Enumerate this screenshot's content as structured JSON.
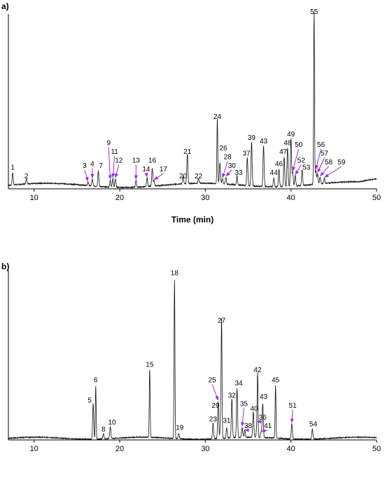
{
  "chart_data": [
    {
      "type": "line",
      "panel": "a)",
      "xlabel": "Time (min)",
      "xlim": [
        7,
        50
      ],
      "xticks": [
        10,
        20,
        30,
        40,
        50
      ],
      "ylabel": "",
      "baseline_level": 0.02,
      "colors": {
        "trace": "#111111",
        "arrow": "#9b2fd8"
      },
      "peaks": [
        {
          "label": "1",
          "x": 7.5,
          "h": 0.07,
          "lx": 7.5,
          "ly": 0.11
        },
        {
          "label": "2",
          "x": 9.1,
          "h": 0.03,
          "lx": 9.1,
          "ly": 0.06
        },
        {
          "label": "3",
          "x": 16.3,
          "h": 0.02,
          "lx": 15.9,
          "ly": 0.12,
          "arrow": true
        },
        {
          "label": "4",
          "x": 16.8,
          "h": 0.04,
          "lx": 16.8,
          "ly": 0.13,
          "arrow": true
        },
        {
          "label": "7",
          "x": 17.5,
          "h": 0.09,
          "lx": 17.8,
          "ly": 0.12
        },
        {
          "label": "9",
          "x": 18.9,
          "h": 0.04,
          "lx": 18.7,
          "ly": 0.25,
          "arrow": true
        },
        {
          "label": "11",
          "x": 19.2,
          "h": 0.05,
          "lx": 19.4,
          "ly": 0.2,
          "arrow": true
        },
        {
          "label": "12",
          "x": 19.5,
          "h": 0.05,
          "lx": 19.9,
          "ly": 0.15,
          "arrow": true
        },
        {
          "label": "13",
          "x": 21.9,
          "h": 0.04,
          "lx": 21.9,
          "ly": 0.15,
          "arrow": true
        },
        {
          "label": "14",
          "x": 23.2,
          "h": 0.05,
          "lx": 23.1,
          "ly": 0.1,
          "arrow": true
        },
        {
          "label": "16",
          "x": 23.8,
          "h": 0.1,
          "lx": 23.8,
          "ly": 0.15
        },
        {
          "label": "17",
          "x": 24.0,
          "h": 0.03,
          "lx": 25.1,
          "ly": 0.1,
          "arrow": true
        },
        {
          "label": "20",
          "x": 27.4,
          "h": 0.04,
          "lx": 27.4,
          "ly": 0.06
        },
        {
          "label": "21",
          "x": 27.9,
          "h": 0.17,
          "lx": 27.9,
          "ly": 0.2
        },
        {
          "label": "22",
          "x": 29.2,
          "h": 0.03,
          "lx": 29.2,
          "ly": 0.06
        },
        {
          "label": "24",
          "x": 31.4,
          "h": 0.37,
          "lx": 31.4,
          "ly": 0.4
        },
        {
          "label": "26",
          "x": 31.7,
          "h": 0.12,
          "lx": 32.1,
          "ly": 0.22
        },
        {
          "label": "28",
          "x": 32.0,
          "h": 0.03,
          "lx": 32.6,
          "ly": 0.17,
          "arrow": true
        },
        {
          "label": "30",
          "x": 32.4,
          "h": 0.04,
          "lx": 33.1,
          "ly": 0.12,
          "arrow": true
        },
        {
          "label": "33",
          "x": 33.7,
          "h": 0.05,
          "lx": 33.9,
          "ly": 0.08
        },
        {
          "label": "37",
          "x": 34.9,
          "h": 0.16,
          "lx": 34.8,
          "ly": 0.19
        },
        {
          "label": "39",
          "x": 35.4,
          "h": 0.25,
          "lx": 35.4,
          "ly": 0.28
        },
        {
          "label": "43",
          "x": 36.8,
          "h": 0.23,
          "lx": 36.8,
          "ly": 0.26
        },
        {
          "label": "44",
          "x": 38.0,
          "h": 0.05,
          "lx": 38.0,
          "ly": 0.08
        },
        {
          "label": "46",
          "x": 38.6,
          "h": 0.1,
          "lx": 38.6,
          "ly": 0.13
        },
        {
          "label": "47",
          "x": 39.2,
          "h": 0.17,
          "lx": 39.1,
          "ly": 0.2
        },
        {
          "label": "48",
          "x": 39.6,
          "h": 0.22,
          "lx": 39.6,
          "ly": 0.25
        },
        {
          "label": "49",
          "x": 40.0,
          "h": 0.27,
          "lx": 40.0,
          "ly": 0.3
        },
        {
          "label": "50",
          "x": 40.2,
          "h": 0.08,
          "lx": 40.9,
          "ly": 0.24,
          "arrow": true
        },
        {
          "label": "52",
          "x": 40.5,
          "h": 0.06,
          "lx": 41.2,
          "ly": 0.15,
          "arrow": true
        },
        {
          "label": "53",
          "x": 41.3,
          "h": 0.09,
          "lx": 41.8,
          "ly": 0.11
        },
        {
          "label": "55",
          "x": 42.7,
          "h": 0.98,
          "lx": 42.7,
          "ly": 1.0
        },
        {
          "label": "56",
          "x": 42.9,
          "h": 0.08,
          "lx": 43.5,
          "ly": 0.24,
          "arrow": true
        },
        {
          "label": "57",
          "x": 43.1,
          "h": 0.06,
          "lx": 43.9,
          "ly": 0.19,
          "arrow": true
        },
        {
          "label": "58",
          "x": 43.4,
          "h": 0.04,
          "lx": 44.4,
          "ly": 0.14,
          "arrow": true
        },
        {
          "label": "59",
          "x": 43.9,
          "h": 0.03,
          "lx": 45.9,
          "ly": 0.14,
          "arrow": true
        }
      ]
    },
    {
      "type": "line",
      "panel": "b)",
      "xlabel": "",
      "xlim": [
        7,
        50
      ],
      "xticks": [
        10,
        20,
        30,
        40,
        50
      ],
      "ylabel": "",
      "baseline_level": 0.01,
      "colors": {
        "trace": "#111111",
        "arrow": "#9b2fd8"
      },
      "peaks": [
        {
          "label": "5",
          "x": 16.9,
          "h": 0.21,
          "lx": 16.5,
          "ly": 0.22
        },
        {
          "label": "6",
          "x": 17.2,
          "h": 0.31,
          "lx": 17.2,
          "ly": 0.34
        },
        {
          "label": "8",
          "x": 18.1,
          "h": 0.03,
          "lx": 18.1,
          "ly": 0.05
        },
        {
          "label": "10",
          "x": 18.9,
          "h": 0.07,
          "lx": 19.1,
          "ly": 0.09
        },
        {
          "label": "15",
          "x": 23.5,
          "h": 0.4,
          "lx": 23.5,
          "ly": 0.43
        },
        {
          "label": "18",
          "x": 26.4,
          "h": 0.93,
          "lx": 26.4,
          "ly": 0.97
        },
        {
          "label": "19",
          "x": 26.9,
          "h": 0.03,
          "lx": 27.0,
          "ly": 0.06
        },
        {
          "label": "23",
          "x": 30.9,
          "h": 0.09,
          "lx": 30.9,
          "ly": 0.11
        },
        {
          "label": "25",
          "x": 31.5,
          "h": 0.22,
          "lx": 30.8,
          "ly": 0.34,
          "arrow": true
        },
        {
          "label": "27",
          "x": 31.9,
          "h": 0.66,
          "lx": 31.9,
          "ly": 0.69
        },
        {
          "label": "29",
          "x": 31.8,
          "h": 0.15,
          "lx": 31.2,
          "ly": 0.19
        },
        {
          "label": "31",
          "x": 32.5,
          "h": 0.06,
          "lx": 32.5,
          "ly": 0.1
        },
        {
          "label": "32",
          "x": 33.1,
          "h": 0.23,
          "lx": 33.1,
          "ly": 0.25
        },
        {
          "label": "34",
          "x": 33.7,
          "h": 0.29,
          "lx": 33.9,
          "ly": 0.32
        },
        {
          "label": "35",
          "x": 34.3,
          "h": 0.06,
          "lx": 34.5,
          "ly": 0.2,
          "arrow": true
        },
        {
          "label": "38",
          "x": 34.6,
          "h": 0.04,
          "lx": 35.0,
          "ly": 0.07,
          "arrow": true
        },
        {
          "label": "40",
          "x": 35.6,
          "h": 0.15,
          "lx": 35.7,
          "ly": 0.17
        },
        {
          "label": "36",
          "x": 36.0,
          "h": 0.04,
          "lx": 36.7,
          "ly": 0.12,
          "arrow": true
        },
        {
          "label": "42",
          "x": 36.1,
          "h": 0.37,
          "lx": 36.1,
          "ly": 0.4
        },
        {
          "label": "43",
          "x": 36.7,
          "h": 0.2,
          "lx": 36.8,
          "ly": 0.24
        },
        {
          "label": "41",
          "x": 36.5,
          "h": 0.03,
          "lx": 37.3,
          "ly": 0.07,
          "arrow": true
        },
        {
          "label": "45",
          "x": 38.2,
          "h": 0.31,
          "lx": 38.2,
          "ly": 0.34
        },
        {
          "label": "51",
          "x": 40.1,
          "h": 0.09,
          "lx": 40.2,
          "ly": 0.19,
          "arrow": true
        },
        {
          "label": "54",
          "x": 42.5,
          "h": 0.06,
          "lx": 42.6,
          "ly": 0.08
        }
      ]
    }
  ]
}
